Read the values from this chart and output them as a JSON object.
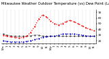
{
  "title": "Milwaukee Weather Outdoor Temperature (vs) Dew Point (Last 24 Hours)",
  "background_color": "#ffffff",
  "grid_color": "#aaaaaa",
  "temp_color": "#ff0000",
  "dewpoint_color": "#0000cc",
  "extra_color": "#000000",
  "ylim": [
    15,
    75
  ],
  "ytick_values": [
    20,
    30,
    40,
    50,
    60,
    70
  ],
  "ytick_labels": [
    "20",
    "30",
    "40",
    "50",
    "60",
    "70"
  ],
  "temp_values": [
    30,
    28,
    27,
    26,
    25,
    26,
    28,
    35,
    45,
    58,
    65,
    62,
    55,
    50,
    48,
    50,
    54,
    56,
    53,
    50,
    46,
    43,
    40,
    38
  ],
  "dewpoint_values": [
    20,
    19,
    18,
    18,
    18,
    18,
    19,
    20,
    22,
    24,
    26,
    27,
    28,
    28,
    30,
    32,
    32,
    32,
    32,
    31,
    30,
    29,
    28,
    28
  ],
  "extra_values": [
    32,
    30,
    29,
    28,
    28,
    28,
    28,
    29,
    30,
    30,
    28,
    28,
    28,
    28,
    28,
    28,
    28,
    28,
    28,
    28,
    28,
    28,
    28,
    28
  ],
  "n_points": 24,
  "title_fontsize": 3.8,
  "tick_fontsize": 3.0,
  "ylabel_fontsize": 3.2
}
